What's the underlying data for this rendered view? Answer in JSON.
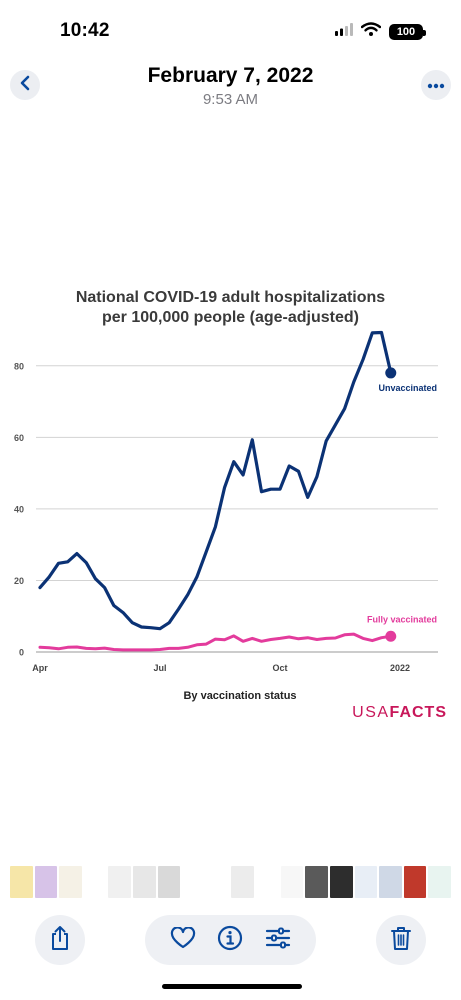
{
  "status_bar": {
    "time": "10:42",
    "battery": "100"
  },
  "header": {
    "date": "February 7, 2022",
    "time": "9:53 AM"
  },
  "icons": {
    "back": "chevron-left-icon",
    "more": "ellipsis-icon",
    "share": "share-icon",
    "favorite": "heart-icon",
    "info": "info-icon",
    "adjust": "sliders-icon",
    "delete": "trash-icon"
  },
  "colors": {
    "accent": "#0a4a9e",
    "unvaccinated": "#0b3275",
    "vaccinated": "#e33b9c",
    "brand": "#c8175a"
  },
  "brand": {
    "part1": "USA",
    "part2": "FACTS"
  },
  "thumbnails": [
    "#f6e6a8",
    "#d7c3e8",
    "#f5f1e6",
    "#ffffff",
    "#f0f0f0",
    "#e7e7e7",
    "#d9d9d9",
    "#ffffff",
    "#ffffff",
    "#ececec",
    "#ffffff",
    "#f7f7f7",
    "#5a5a5a",
    "#2d2d2d",
    "#e8eef6",
    "#cfd8e6",
    "#c0392b",
    "#e8f4f0"
  ],
  "chart_data": {
    "type": "line",
    "title_line1": "National COVID-19 adult hospitalizations",
    "title_line2": "per 100,000 people (age-adjusted)",
    "xlabel": "By vaccination status",
    "ylabel": "",
    "ylim": [
      0,
      90
    ],
    "yticks": [
      0,
      20,
      40,
      60,
      80
    ],
    "xticks": [
      {
        "label": "Apr",
        "week": 0
      },
      {
        "label": "Jul",
        "week": 13
      },
      {
        "label": "Oct",
        "week": 26
      },
      {
        "label": "2022",
        "week": 39
      }
    ],
    "grid": true,
    "series": [
      {
        "name": "Unvaccinated",
        "values": [
          18,
          21,
          24.8,
          25.2,
          27.5,
          25,
          20.5,
          18,
          13,
          11,
          8.2,
          7,
          6.8,
          6.5,
          8.2,
          12,
          16,
          21,
          28,
          35,
          46,
          53.2,
          49.5,
          59.3,
          44.8,
          45.5,
          45.5,
          52,
          50.5,
          43.2,
          49,
          59,
          63.5,
          68,
          75.5,
          81.8,
          89.2,
          89.3,
          78
        ]
      },
      {
        "name": "Fully vaccinated",
        "values": [
          1.3,
          1.2,
          0.9,
          1.3,
          1.4,
          1,
          0.9,
          1.1,
          0.7,
          0.6,
          0.6,
          0.6,
          0.6,
          0.7,
          1,
          1,
          1.3,
          2,
          2.2,
          3.6,
          3.4,
          4.5,
          3,
          3.8,
          3,
          3.5,
          3.8,
          4.2,
          3.7,
          4,
          3.5,
          3.8,
          3.9,
          4.8,
          5,
          3.8,
          3.2,
          4,
          4.4
        ]
      }
    ]
  }
}
